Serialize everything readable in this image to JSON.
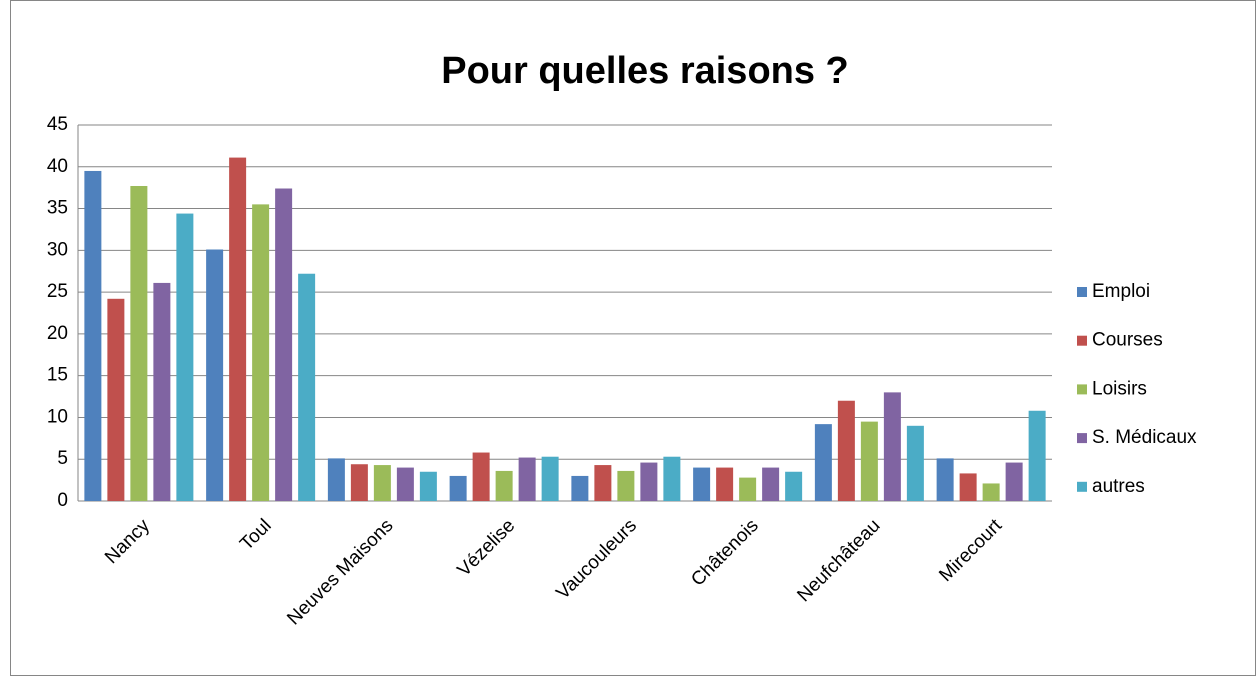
{
  "chart_data": {
    "type": "bar",
    "title": "Pour quelles raisons ?",
    "categories": [
      "Nancy",
      "Toul",
      "Neuves Maisons",
      "Vézelise",
      "Vaucouleurs",
      "Châtenois",
      "Neufchâteau",
      "Mirecourt"
    ],
    "series": [
      {
        "name": "Emploi",
        "color": "#4f81bd",
        "values": [
          39.5,
          30.1,
          5.1,
          3.0,
          3.0,
          4.0,
          9.2,
          5.1
        ]
      },
      {
        "name": "Courses",
        "color": "#c0504d",
        "values": [
          24.2,
          41.1,
          4.4,
          5.8,
          4.3,
          4.0,
          12.0,
          3.3
        ]
      },
      {
        "name": "Loisirs",
        "color": "#9bbb59",
        "values": [
          37.7,
          35.5,
          4.3,
          3.6,
          3.6,
          2.8,
          9.5,
          2.1
        ]
      },
      {
        "name": "S. Médicaux",
        "color": "#8064a2",
        "values": [
          26.1,
          37.4,
          4.0,
          5.2,
          4.6,
          4.0,
          13.0,
          4.6
        ]
      },
      {
        "name": "autres",
        "color": "#4bacc6",
        "values": [
          34.4,
          27.2,
          3.5,
          5.3,
          5.3,
          3.5,
          9.0,
          10.8
        ]
      }
    ],
    "ylim": [
      0,
      45
    ],
    "yticks": [
      0,
      5,
      10,
      15,
      20,
      25,
      30,
      35,
      40,
      45
    ],
    "grid": true,
    "legend": "right"
  }
}
